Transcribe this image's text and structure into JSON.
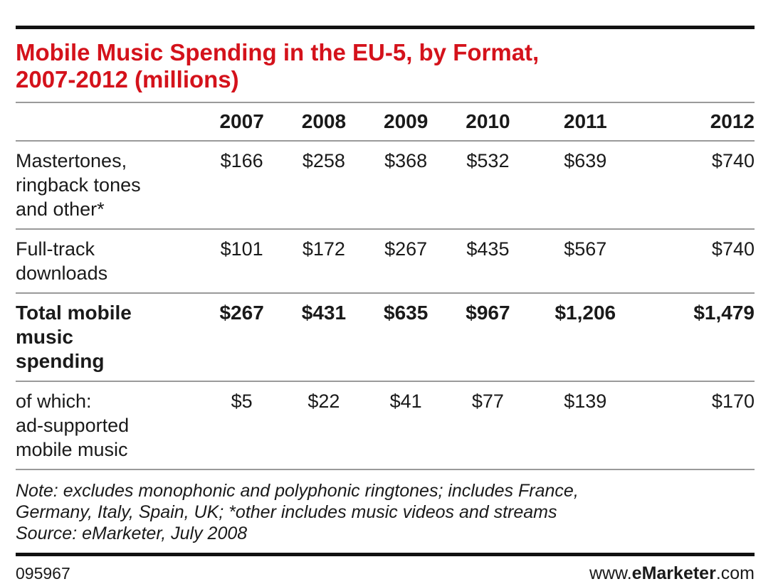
{
  "title_line1": "Mobile Music Spending in the EU-5, by Format,",
  "title_line2": "2007-2012 (millions)",
  "chart_data": {
    "type": "table",
    "title": "Mobile Music Spending in the EU-5, by Format, 2007-2012 (millions)",
    "columns": [
      "2007",
      "2008",
      "2009",
      "2010",
      "2011",
      "2012"
    ],
    "rows": [
      {
        "label_lines": [
          "Mastertones,",
          "ringback tones",
          "and other*"
        ],
        "values": [
          "$166",
          "$258",
          "$368",
          "$532",
          "$639",
          "$740"
        ],
        "bold": false
      },
      {
        "label_lines": [
          "Full-track",
          "downloads"
        ],
        "values": [
          "$101",
          "$172",
          "$267",
          "$435",
          "$567",
          "$740"
        ],
        "bold": false
      },
      {
        "label_lines": [
          "Total mobile",
          "music",
          "spending"
        ],
        "values": [
          "$267",
          "$431",
          "$635",
          "$967",
          "$1,206",
          "$1,479"
        ],
        "bold": true
      },
      {
        "label_lines": [
          "of which:",
          "ad-supported",
          "mobile music"
        ],
        "values": [
          "$5",
          "$22",
          "$41",
          "$77",
          "$139",
          "$170"
        ],
        "bold": false
      }
    ]
  },
  "note": {
    "line1": "Note: excludes monophonic and polyphonic ringtones; includes France,",
    "line2": "Germany, Italy, Spain, UK; *other includes music videos and streams",
    "line3": "Source: eMarketer, July 2008"
  },
  "footer": {
    "chart_id": "095967",
    "brand_prefix": "www.",
    "brand_bold": "eMarketer",
    "brand_suffix": ".com"
  },
  "colors": {
    "title": "#d4121b",
    "rule": "#111111",
    "divider": "#9a9a9a"
  }
}
